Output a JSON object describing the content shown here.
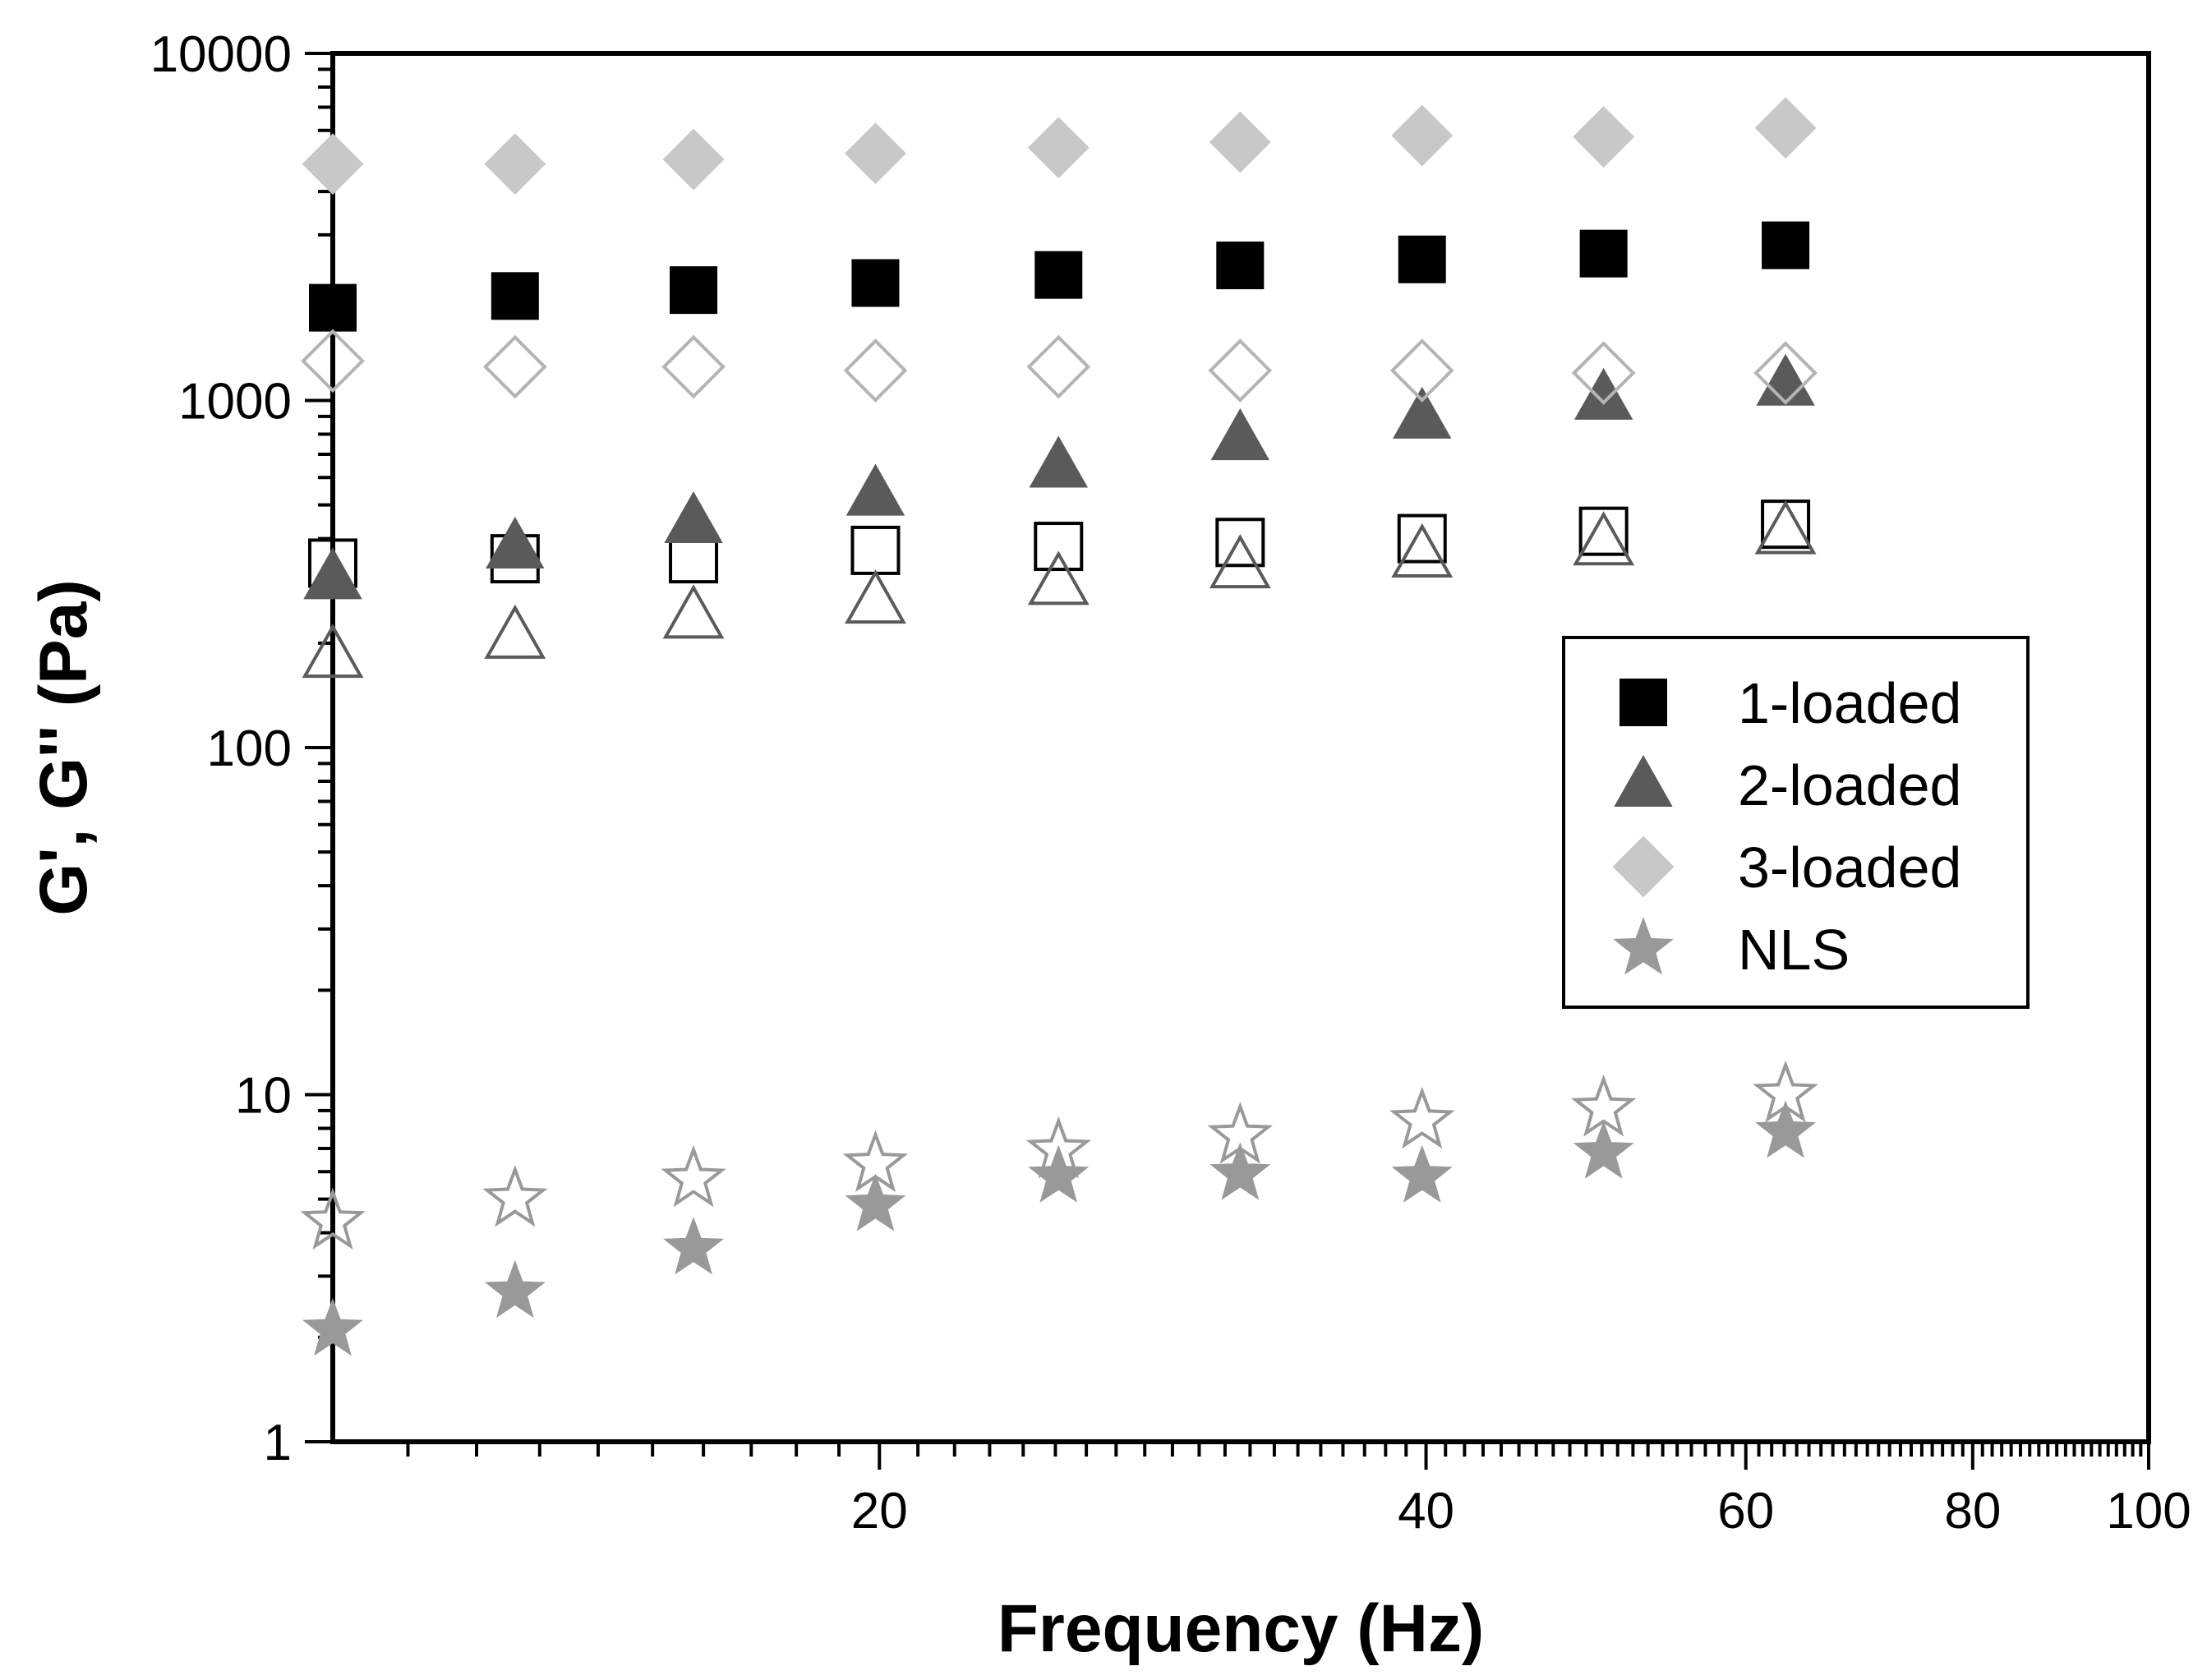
{
  "chart_data": {
    "type": "scatter",
    "xlabel": "Frequency (Hz)",
    "ylabel": "G', G'' (Pa)",
    "x_scale": "log",
    "y_scale": "log",
    "xlim": [
      10,
      100
    ],
    "ylim": [
      1,
      10000
    ],
    "x_ticks": [
      {
        "value": 20,
        "label": "20"
      },
      {
        "value": 40,
        "label": "40"
      },
      {
        "value": 60,
        "label": "60"
      },
      {
        "value": 80,
        "label": "80"
      },
      {
        "value": 100,
        "label": "100"
      }
    ],
    "y_ticks": [
      {
        "value": 1,
        "label": "1"
      },
      {
        "value": 10,
        "label": "10"
      },
      {
        "value": 100,
        "label": "100"
      },
      {
        "value": 1000,
        "label": "1000"
      },
      {
        "value": 10000,
        "label": "10000"
      }
    ],
    "grid": false,
    "legend_position": "right",
    "x": [
      10,
      12.6,
      15.8,
      19.9,
      25.1,
      31.6,
      39.8,
      50.1,
      63.1
    ],
    "series": [
      {
        "name": "1-loaded",
        "legend": true,
        "marker": "square",
        "filled": true,
        "color": "#000000",
        "values": [
          1850,
          2000,
          2080,
          2180,
          2300,
          2450,
          2550,
          2650,
          2800
        ]
      },
      {
        "name": "",
        "marker": "square",
        "filled": false,
        "color": "#000000",
        "values": [
          340,
          350,
          350,
          370,
          380,
          390,
          400,
          420,
          440
        ]
      },
      {
        "name": "2-loaded",
        "legend": true,
        "marker": "triangle",
        "filled": true,
        "color": "#5a5a5a",
        "values": [
          310,
          380,
          450,
          540,
          650,
          780,
          900,
          1020,
          1120
        ]
      },
      {
        "name": "",
        "marker": "triangle",
        "filled": false,
        "color": "#5a5a5a",
        "values": [
          185,
          210,
          240,
          265,
          300,
          335,
          360,
          390,
          420
        ]
      },
      {
        "name": "3-loaded",
        "legend": true,
        "marker": "diamond",
        "filled": true,
        "color": "#c8c8c8",
        "values": [
          4800,
          4800,
          4950,
          5150,
          5350,
          5550,
          5800,
          5750,
          6100
        ]
      },
      {
        "name": "",
        "marker": "diamond",
        "filled": false,
        "color": "#b4b4b4",
        "values": [
          1300,
          1250,
          1250,
          1220,
          1250,
          1220,
          1220,
          1200,
          1200
        ]
      },
      {
        "name": "NLS",
        "legend": true,
        "marker": "star",
        "filled": true,
        "color": "#999999",
        "values": [
          2.1,
          2.7,
          3.6,
          4.8,
          5.8,
          5.9,
          5.8,
          6.8,
          7.8
        ]
      },
      {
        "name": "",
        "marker": "star",
        "filled": false,
        "color": "#999999",
        "values": [
          4.3,
          5.0,
          5.7,
          6.3,
          6.9,
          7.6,
          8.4,
          9.1,
          10.0
        ]
      }
    ]
  }
}
